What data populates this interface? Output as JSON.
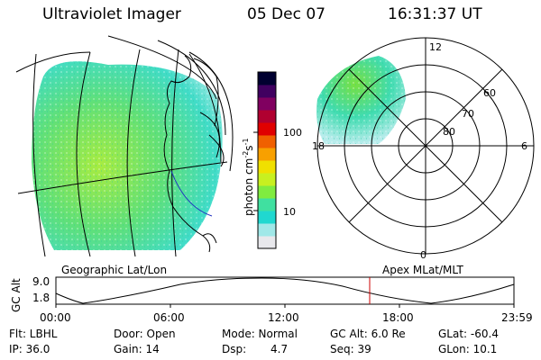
{
  "header": {
    "instrument": "Ultraviolet Imager",
    "date": "05 Dec 07",
    "time": "16:31:37 UT"
  },
  "panels": {
    "left_label": "Geographic Lat/Lon",
    "right_label": "Apex MLat/MLT"
  },
  "colorbar": {
    "unit_label": "photon cm",
    "unit_sup1": "-2",
    "unit_mid": "s",
    "unit_sup2": "-1",
    "ticks": [
      "100",
      "10"
    ],
    "colors": [
      "#e8e8ec",
      "#a0e8e8",
      "#20d8d0",
      "#40e0a0",
      "#80ec40",
      "#c8f020",
      "#f0e000",
      "#f8a000",
      "#f06000",
      "#e00000",
      "#b00030",
      "#800060",
      "#400060",
      "#000030"
    ]
  },
  "polar_plot": {
    "mlt_labels": {
      "top": "12",
      "left": "18",
      "right": "6",
      "bottom": "0"
    },
    "lat_labels": [
      "60",
      "70",
      "80"
    ]
  },
  "altitude_plot": {
    "ylabel": "GC Alt",
    "yticks": [
      "9.0",
      "1.8"
    ],
    "xticks": [
      "00:00",
      "06:00",
      "12:00",
      "18:00",
      "23:59"
    ],
    "marker_color": "#cc0000"
  },
  "footer": {
    "row1": {
      "flt": "Flt: LBHL",
      "door": "Door: Open",
      "mode": "Mode: Normal",
      "gcalt": "GC Alt: 6.0 Re",
      "glat": "GLat: -60.4"
    },
    "row2": {
      "ip": "IP: 36.0",
      "gain": "Gain: 14",
      "dsp_label": "Dsp:",
      "dsp_value": "4.7",
      "seq": "Seq: 39",
      "glon": "GLon: 10.1"
    }
  }
}
